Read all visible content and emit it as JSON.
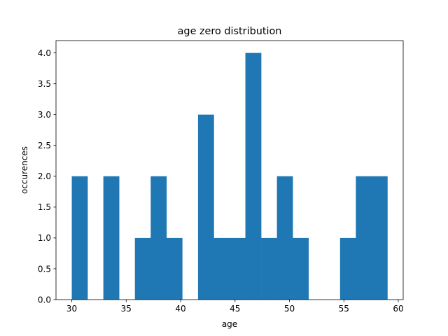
{
  "chart_data": {
    "type": "bar",
    "title": "age zero distribution",
    "xlabel": "age",
    "ylabel": "occurences",
    "bin_start": 30,
    "bin_width": 1.45,
    "values": [
      2,
      0,
      2,
      0,
      1,
      2,
      1,
      0,
      3,
      1,
      1,
      4,
      1,
      2,
      1,
      0,
      0,
      1,
      2,
      2
    ],
    "xlim": [
      28.55,
      60.45
    ],
    "ylim": [
      0,
      4.2
    ],
    "x_ticks": [
      30,
      35,
      40,
      45,
      50,
      55,
      60
    ],
    "y_ticks": [
      0.0,
      0.5,
      1.0,
      1.5,
      2.0,
      2.5,
      3.0,
      3.5,
      4.0
    ],
    "x_tick_labels": [
      "30",
      "35",
      "40",
      "45",
      "50",
      "55",
      "60"
    ],
    "y_tick_labels": [
      "0.0",
      "0.5",
      "1.0",
      "1.5",
      "2.0",
      "2.5",
      "3.0",
      "3.5",
      "4.0"
    ],
    "grid": false,
    "bar_color": "#1f77b4"
  }
}
